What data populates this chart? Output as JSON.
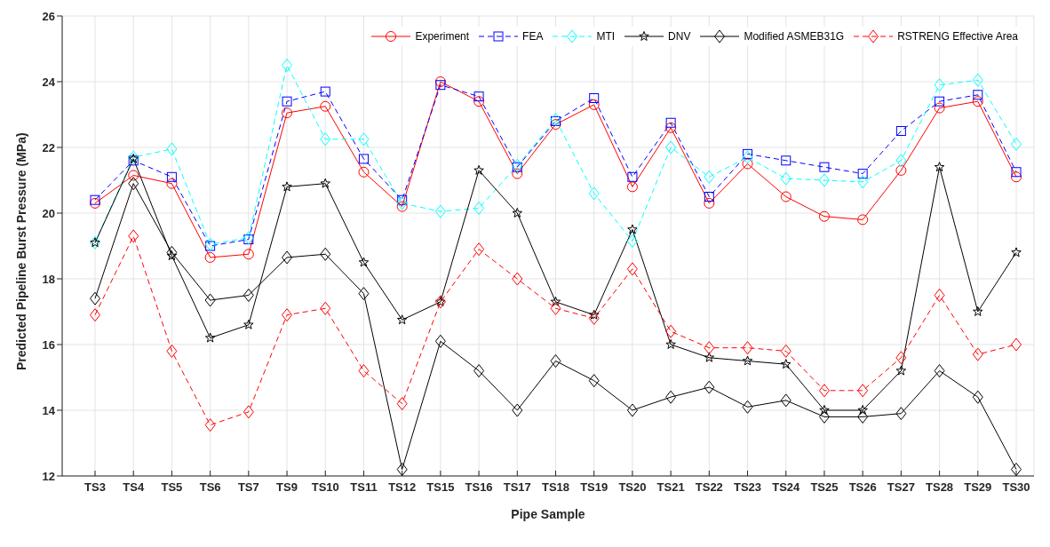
{
  "chart_data": {
    "type": "line",
    "xlabel": "Pipe Sample",
    "ylabel": "Predicted Pipeline Burst Pressure (MPa)",
    "categories": [
      "TS3",
      "TS4",
      "TS5",
      "TS6",
      "TS7",
      "TS9",
      "TS10",
      "TS11",
      "TS12",
      "TS15",
      "TS16",
      "TS17",
      "TS18",
      "TS19",
      "TS20",
      "TS21",
      "TS22",
      "TS23",
      "TS24",
      "TS25",
      "TS26",
      "TS27",
      "TS28",
      "TS29",
      "TS30"
    ],
    "series": [
      {
        "name": "Experiment",
        "color": "#ff0000",
        "marker": "circle",
        "line_style": "solid",
        "values": [
          20.3,
          21.15,
          20.9,
          18.65,
          18.75,
          23.05,
          23.25,
          21.25,
          20.2,
          24.0,
          23.4,
          21.2,
          22.7,
          23.3,
          20.8,
          22.6,
          20.3,
          21.5,
          20.5,
          19.9,
          19.8,
          21.3,
          23.2,
          23.4,
          21.1
        ]
      },
      {
        "name": "FEA",
        "color": "#0000ff",
        "marker": "square",
        "line_style": "dashed",
        "values": [
          20.4,
          21.6,
          21.1,
          19.0,
          19.2,
          23.4,
          23.7,
          21.65,
          20.4,
          23.9,
          23.55,
          21.4,
          22.8,
          23.5,
          21.1,
          22.75,
          20.5,
          21.8,
          21.6,
          21.4,
          21.2,
          22.5,
          23.4,
          23.6,
          21.25
        ]
      },
      {
        "name": "MTI",
        "color": "#00ffff",
        "marker": "diamond",
        "line_style": "dashed",
        "values": [
          19.1,
          21.7,
          21.95,
          19.05,
          19.25,
          24.5,
          22.25,
          22.25,
          20.3,
          20.05,
          20.15,
          21.45,
          22.85,
          20.6,
          19.15,
          22.0,
          21.1,
          21.7,
          21.05,
          21.0,
          20.95,
          21.6,
          23.9,
          24.05,
          22.1
        ]
      },
      {
        "name": "DNV",
        "color": "#000000",
        "marker": "star",
        "line_style": "solid",
        "values": [
          19.1,
          21.65,
          18.7,
          16.2,
          16.6,
          20.8,
          20.9,
          18.5,
          16.75,
          17.3,
          21.3,
          20.0,
          17.3,
          16.9,
          19.5,
          16.0,
          15.6,
          15.5,
          15.4,
          14.0,
          14.0,
          15.2,
          21.4,
          17.0,
          18.8
        ]
      },
      {
        "name": "Modified ASMEB31G",
        "color": "#000000",
        "marker": "diamond",
        "line_style": "solid",
        "values": [
          17.4,
          20.9,
          18.8,
          17.35,
          17.5,
          18.65,
          18.75,
          17.55,
          12.2,
          16.1,
          15.2,
          14.0,
          15.5,
          14.9,
          14.0,
          14.4,
          14.7,
          14.1,
          14.3,
          13.8,
          13.8,
          13.9,
          15.2,
          14.4,
          12.2
        ]
      },
      {
        "name": "RSTRENG Effective Area",
        "color": "#ff0000",
        "marker": "diamond",
        "line_style": "dashed",
        "values": [
          16.9,
          19.3,
          15.8,
          13.55,
          13.95,
          16.9,
          17.1,
          15.2,
          14.2,
          17.3,
          18.9,
          18.0,
          17.1,
          16.8,
          18.3,
          16.4,
          15.9,
          15.9,
          15.8,
          14.6,
          14.6,
          15.6,
          17.5,
          15.7,
          16.0
        ]
      }
    ],
    "ylim": [
      12,
      26
    ],
    "yticks": [
      12,
      14,
      16,
      18,
      20,
      22,
      24,
      26
    ],
    "grid": true,
    "legend": "top right"
  }
}
